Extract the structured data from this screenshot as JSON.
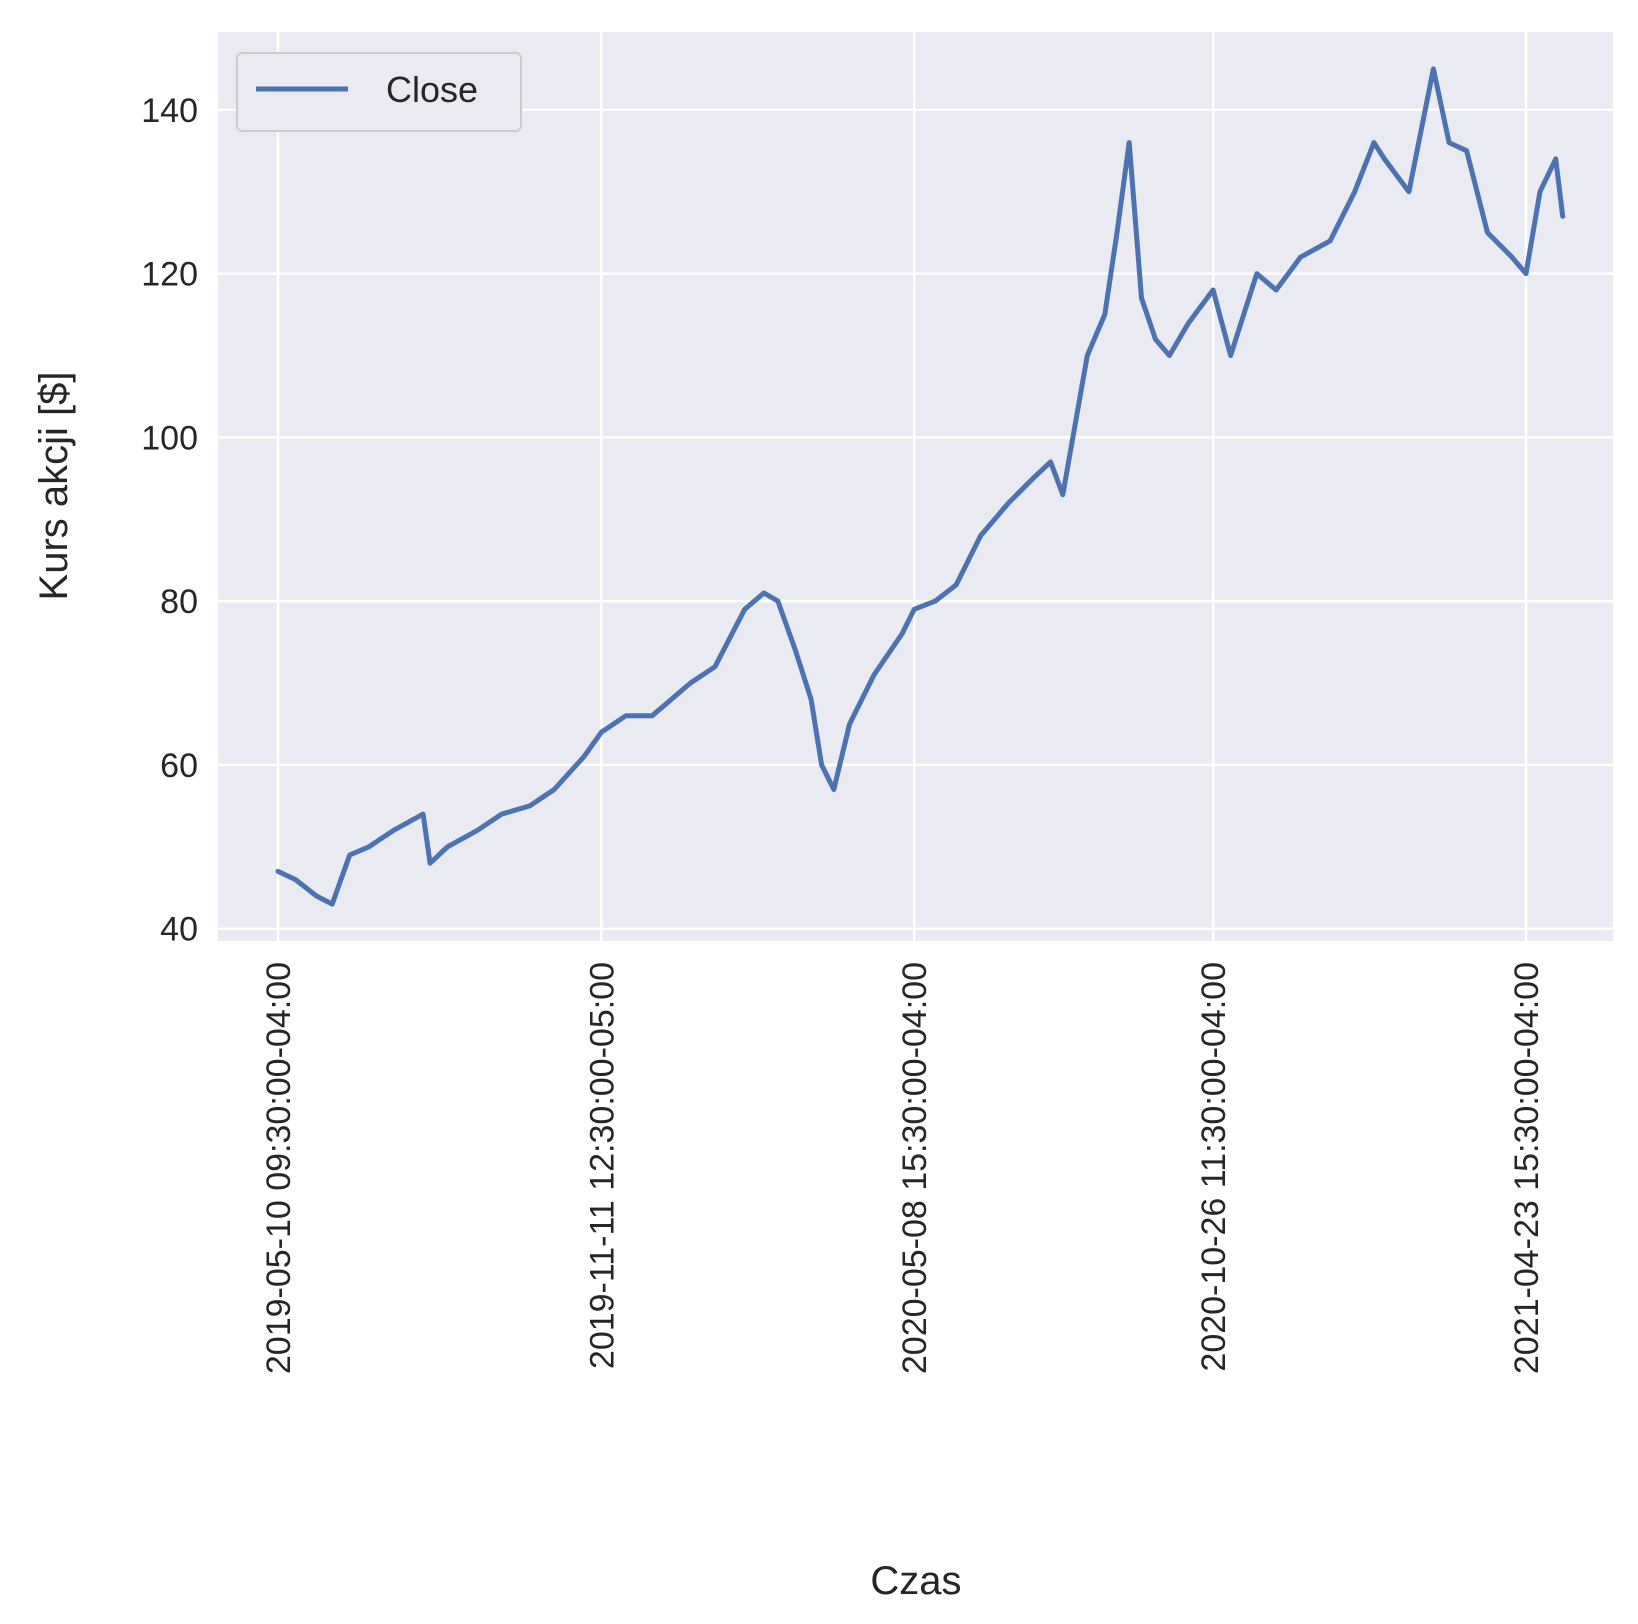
{
  "chart_data": {
    "type": "line",
    "xlabel": "Czas",
    "ylabel": "Kurs akcji [$]",
    "x_ticks": [
      "2019-05-10 09:30:00-04:00",
      "2019-11-11 12:30:00-05:00",
      "2020-05-08 15:30:00-04:00",
      "2020-10-26 11:30:00-04:00",
      "2021-04-23 15:30:00-04:00"
    ],
    "y_ticks": [
      40,
      60,
      80,
      100,
      120,
      140
    ],
    "ylim": [
      38.5,
      149.5
    ],
    "grid": true,
    "legend_position": "top-left",
    "colors": {
      "background": "#eaeaf2",
      "grid": "#ffffff",
      "line": "#4c72b0"
    },
    "series": [
      {
        "name": "Close",
        "x": [
          "2019-05-10",
          "2019-05-20",
          "2019-06-01",
          "2019-06-10",
          "2019-06-20",
          "2019-07-01",
          "2019-07-15",
          "2019-08-01",
          "2019-08-05",
          "2019-08-15",
          "2019-09-01",
          "2019-09-15",
          "2019-10-01",
          "2019-10-15",
          "2019-11-01",
          "2019-11-11",
          "2019-11-25",
          "2019-12-10",
          "2020-01-01",
          "2020-01-15",
          "2020-02-01",
          "2020-02-12",
          "2020-02-20",
          "2020-03-01",
          "2020-03-10",
          "2020-03-16",
          "2020-03-23",
          "2020-04-01",
          "2020-04-15",
          "2020-05-01",
          "2020-05-08",
          "2020-05-20",
          "2020-06-01",
          "2020-06-15",
          "2020-07-01",
          "2020-07-15",
          "2020-07-25",
          "2020-08-01",
          "2020-08-15",
          "2020-08-25",
          "2020-09-01",
          "2020-09-08",
          "2020-09-15",
          "2020-09-23",
          "2020-10-01",
          "2020-10-12",
          "2020-10-26",
          "2020-11-05",
          "2020-11-20",
          "2020-12-01",
          "2020-12-15",
          "2021-01-01",
          "2021-01-15",
          "2021-01-26",
          "2021-02-01",
          "2021-02-15",
          "2021-03-01",
          "2021-03-10",
          "2021-03-20",
          "2021-04-01",
          "2021-04-15",
          "2021-04-23",
          "2021-05-01",
          "2021-05-10",
          "2021-05-14"
        ],
        "values": [
          47,
          46,
          44,
          43,
          49,
          50,
          52,
          54,
          48,
          50,
          52,
          54,
          55,
          57,
          61,
          64,
          66,
          66,
          70,
          72,
          79,
          81,
          80,
          74,
          68,
          60,
          57,
          65,
          71,
          76,
          79,
          80,
          82,
          88,
          92,
          95,
          97,
          93,
          110,
          115,
          125,
          136,
          117,
          112,
          110,
          114,
          118,
          110,
          120,
          118,
          122,
          124,
          130,
          136,
          134,
          130,
          145,
          136,
          135,
          125,
          122,
          120,
          130,
          134,
          127
        ]
      }
    ]
  }
}
